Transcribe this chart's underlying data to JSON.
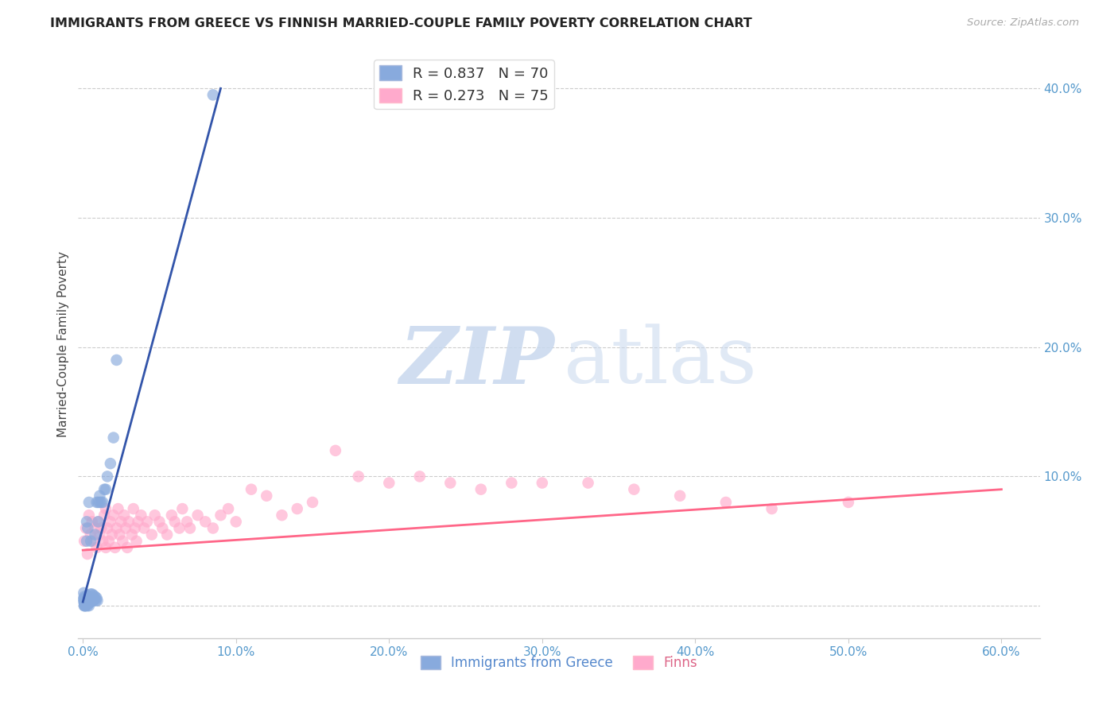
{
  "title": "IMMIGRANTS FROM GREECE VS FINNISH MARRIED-COUPLE FAMILY POVERTY CORRELATION CHART",
  "source": "Source: ZipAtlas.com",
  "ylabel": "Married-Couple Family Poverty",
  "blue_color": "#88AADD",
  "pink_color": "#FFAACC",
  "blue_line_color": "#3355AA",
  "pink_line_color": "#FF6688",
  "legend_blue_label": "R = 0.837   N = 70",
  "legend_pink_label": "R = 0.273   N = 75",
  "xlim": [
    -0.003,
    0.625
  ],
  "ylim": [
    -0.025,
    0.43
  ],
  "xtick_vals": [
    0.0,
    0.1,
    0.2,
    0.3,
    0.4,
    0.5,
    0.6
  ],
  "xtick_labels": [
    "0.0%",
    "10.0%",
    "20.0%",
    "30.0%",
    "40.0%",
    "50.0%",
    "60.0%"
  ],
  "ytick_vals": [
    0.0,
    0.1,
    0.2,
    0.3,
    0.4
  ],
  "ytick_labels": [
    "",
    "10.0%",
    "20.0%",
    "30.0%",
    "40.0%"
  ],
  "blue_scatter_x": [
    0.0005,
    0.0006,
    0.0007,
    0.0008,
    0.0009,
    0.001,
    0.001,
    0.001,
    0.001,
    0.0012,
    0.0013,
    0.0014,
    0.0015,
    0.0016,
    0.0018,
    0.002,
    0.002,
    0.002,
    0.0022,
    0.0024,
    0.0025,
    0.0025,
    0.003,
    0.003,
    0.003,
    0.003,
    0.003,
    0.0032,
    0.0035,
    0.0038,
    0.004,
    0.004,
    0.004,
    0.004,
    0.004,
    0.0042,
    0.0045,
    0.005,
    0.005,
    0.005,
    0.005,
    0.0052,
    0.0055,
    0.006,
    0.006,
    0.006,
    0.0065,
    0.007,
    0.007,
    0.007,
    0.0075,
    0.008,
    0.008,
    0.0085,
    0.009,
    0.009,
    0.0095,
    0.01,
    0.01,
    0.011,
    0.011,
    0.012,
    0.013,
    0.014,
    0.015,
    0.016,
    0.018,
    0.02,
    0.022,
    0.085
  ],
  "blue_scatter_y": [
    0.005,
    0.01,
    0.003,
    0.007,
    0.0,
    0.0,
    0.002,
    0.004,
    0.006,
    0.001,
    0.003,
    0.005,
    0.002,
    0.0,
    0.003,
    0.0,
    0.002,
    0.004,
    0.001,
    0.003,
    0.05,
    0.065,
    0.0,
    0.002,
    0.004,
    0.006,
    0.008,
    0.06,
    0.002,
    0.004,
    0.0,
    0.002,
    0.004,
    0.006,
    0.08,
    0.003,
    0.005,
    0.003,
    0.005,
    0.007,
    0.009,
    0.05,
    0.004,
    0.004,
    0.006,
    0.009,
    0.004,
    0.004,
    0.006,
    0.008,
    0.005,
    0.055,
    0.007,
    0.004,
    0.006,
    0.08,
    0.004,
    0.065,
    0.08,
    0.08,
    0.085,
    0.08,
    0.08,
    0.09,
    0.09,
    0.1,
    0.11,
    0.13,
    0.19,
    0.395
  ],
  "pink_scatter_x": [
    0.001,
    0.002,
    0.003,
    0.004,
    0.005,
    0.006,
    0.007,
    0.008,
    0.009,
    0.01,
    0.011,
    0.012,
    0.013,
    0.014,
    0.015,
    0.015,
    0.016,
    0.017,
    0.018,
    0.019,
    0.02,
    0.021,
    0.022,
    0.023,
    0.024,
    0.025,
    0.026,
    0.027,
    0.028,
    0.029,
    0.03,
    0.032,
    0.033,
    0.034,
    0.035,
    0.036,
    0.038,
    0.04,
    0.042,
    0.045,
    0.047,
    0.05,
    0.052,
    0.055,
    0.058,
    0.06,
    0.063,
    0.065,
    0.068,
    0.07,
    0.075,
    0.08,
    0.085,
    0.09,
    0.095,
    0.1,
    0.11,
    0.12,
    0.13,
    0.14,
    0.15,
    0.165,
    0.18,
    0.2,
    0.22,
    0.24,
    0.26,
    0.28,
    0.3,
    0.33,
    0.36,
    0.39,
    0.42,
    0.45,
    0.5
  ],
  "pink_scatter_y": [
    0.05,
    0.06,
    0.04,
    0.07,
    0.055,
    0.065,
    0.05,
    0.06,
    0.045,
    0.065,
    0.055,
    0.06,
    0.05,
    0.07,
    0.045,
    0.075,
    0.06,
    0.05,
    0.065,
    0.055,
    0.07,
    0.045,
    0.06,
    0.075,
    0.055,
    0.065,
    0.05,
    0.07,
    0.06,
    0.045,
    0.065,
    0.055,
    0.075,
    0.06,
    0.05,
    0.065,
    0.07,
    0.06,
    0.065,
    0.055,
    0.07,
    0.065,
    0.06,
    0.055,
    0.07,
    0.065,
    0.06,
    0.075,
    0.065,
    0.06,
    0.07,
    0.065,
    0.06,
    0.07,
    0.075,
    0.065,
    0.09,
    0.085,
    0.07,
    0.075,
    0.08,
    0.12,
    0.1,
    0.095,
    0.1,
    0.095,
    0.09,
    0.095,
    0.095,
    0.095,
    0.09,
    0.085,
    0.08,
    0.075,
    0.08
  ],
  "blue_line_x": [
    0.0,
    0.09
  ],
  "blue_line_y": [
    0.003,
    0.4
  ],
  "pink_line_x": [
    0.0,
    0.6
  ],
  "pink_line_y": [
    0.043,
    0.09
  ]
}
